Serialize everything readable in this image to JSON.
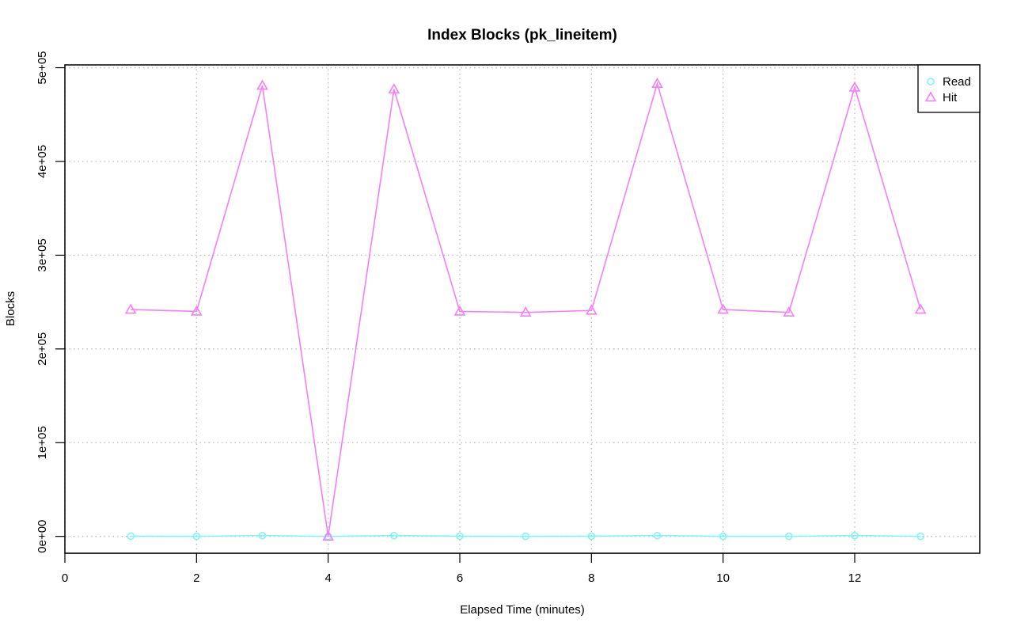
{
  "chart_data": {
    "type": "line",
    "title": "Index Blocks (pk_lineitem)",
    "xlabel": "Elapsed Time (minutes)",
    "ylabel": "Blocks",
    "xlim": [
      0,
      13.9
    ],
    "ylim": [
      -18000,
      503000
    ],
    "x_ticks": [
      0,
      2,
      4,
      6,
      8,
      10,
      12
    ],
    "x_tick_labels": [
      "0",
      "2",
      "4",
      "6",
      "8",
      "10",
      "12"
    ],
    "y_ticks": [
      0,
      100000,
      200000,
      300000,
      400000,
      500000
    ],
    "y_tick_labels": [
      "0e+00",
      "1e+05",
      "2e+05",
      "3e+05",
      "4e+05",
      "5e+05"
    ],
    "grid": true,
    "legend_position": "top-right",
    "x": [
      1,
      2,
      3,
      4,
      5,
      6,
      7,
      8,
      9,
      10,
      11,
      12,
      13
    ],
    "series": [
      {
        "name": "Read",
        "color": "#7ff5f5",
        "marker": "circle",
        "values": [
          200,
          100,
          900,
          0,
          800,
          200,
          100,
          200,
          900,
          100,
          100,
          800,
          100
        ]
      },
      {
        "name": "Hit",
        "color": "#f47ff4",
        "marker": "triangle",
        "values": [
          242000,
          240000,
          481000,
          0,
          477000,
          240000,
          239000,
          241000,
          483000,
          242000,
          239000,
          479000,
          242000
        ]
      }
    ]
  }
}
